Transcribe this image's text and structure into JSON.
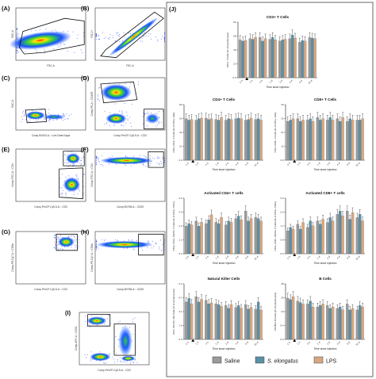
{
  "panel_labels": [
    "(A)",
    "(B)",
    "(C)",
    "(D)",
    "(E)",
    "(F)",
    "(G)",
    "(H)",
    "(I)",
    "(J)"
  ],
  "flow": [
    {
      "x": "FSC-A",
      "y": "SSC-A",
      "gate": "SSC-A"
    },
    {
      "x": "FSC-A",
      "y": "FSC-H",
      "gate": "FSC-H"
    },
    {
      "x": "Comp-BV510-A :: Live-Dead Aqua",
      "y": "SSC-A",
      "gate": ""
    },
    {
      "x": "Comp-PerCP-Cy5-5-A :: CD3",
      "y": "Comp-PE-A :: CD45R",
      "gate": ""
    },
    {
      "x": "Comp-PerCP-Cy5-5-A :: CD3",
      "y": "Comp-FITC-A :: CD4",
      "gate": ""
    },
    {
      "x": "Comp-BV786-A :: CD25",
      "y": "Comp-FITC-A :: CD4",
      "gate": ""
    },
    {
      "x": "Comp-PerCP-Cy5-5-A :: CD3",
      "y": "Comp-PE-Cy7-A :: CD8a",
      "gate": ""
    },
    {
      "x": "Comp-BV786-A :: CD25",
      "y": "Comp-PE-Cy7-A :: CD8a",
      "gate": ""
    },
    {
      "x": "Comp-PerCP-Cy5-5-A :: CD3",
      "y": "Comp-APC-A :: CD11",
      "gate": ""
    }
  ],
  "chart_data": [
    {
      "type": "bar",
      "title": "CD3+ T Cells",
      "ylabel": "CD3+ T-Cells (% of lymphocytes)",
      "xlabel": "Time since injection",
      "categories": [
        "-1 h",
        "1 h",
        "4 h",
        "1 d",
        "2 d",
        "4 d",
        "8 d",
        "16 d"
      ],
      "series": [
        {
          "name": "Saline",
          "values": [
            62,
            64,
            66,
            63,
            60,
            64,
            58,
            66
          ]
        },
        {
          "name": "S. elongatus",
          "values": [
            60,
            63,
            60,
            66,
            62,
            70,
            61,
            65
          ]
        },
        {
          "name": "LPS",
          "values": [
            61,
            66,
            64,
            62,
            63,
            65,
            60,
            64
          ]
        }
      ]
    },
    {
      "type": "bar",
      "title": "CD4+ T Cells",
      "ylabel": "CD3+ CD4+ T-Cells (% of CD3+ cells)",
      "xlabel": "Time since injection",
      "categories": [
        "-1 h",
        "1 h",
        "4 h",
        "1 d",
        "2 d",
        "4 d",
        "8 d",
        "16 d"
      ],
      "series": [
        {
          "name": "Saline",
          "values": [
            62,
            60,
            63,
            61,
            60,
            62,
            60,
            61
          ]
        },
        {
          "name": "S. elongatus",
          "values": [
            60,
            62,
            61,
            60,
            62,
            63,
            61,
            62
          ]
        },
        {
          "name": "LPS",
          "values": [
            61,
            63,
            62,
            64,
            61,
            62,
            63,
            60
          ]
        }
      ]
    },
    {
      "type": "bar",
      "title": "CD8+ T Cells",
      "ylabel": "CD3+ CD8+ T-Cells (% of CD3+ cells)",
      "xlabel": "Time since injection",
      "categories": [
        "-1 h",
        "1 h",
        "4 h",
        "1 d",
        "2 d",
        "4 d",
        "8 d",
        "16 d"
      ],
      "series": [
        {
          "name": "Saline",
          "values": [
            30,
            32,
            31,
            33,
            31,
            32,
            30,
            31
          ]
        },
        {
          "name": "S. elongatus",
          "values": [
            31,
            30,
            32,
            31,
            33,
            30,
            32,
            31
          ]
        },
        {
          "name": "LPS",
          "values": [
            32,
            31,
            30,
            32,
            31,
            33,
            31,
            32
          ]
        }
      ]
    },
    {
      "type": "bar",
      "title": "Activated CD4+ T cells",
      "ylabel": "CD3+ CD4+ CD25+ T-Cells (% of CD3+ CD4+)",
      "xlabel": "Time since injection",
      "categories": [
        "-1 h",
        "1 h",
        "4 h",
        "1 d",
        "2 d",
        "4 d",
        "8 d",
        "16 d"
      ],
      "series": [
        {
          "name": "Saline",
          "values": [
            2.2,
            2.6,
            2.4,
            2.5,
            2.3,
            2.8,
            3.4,
            2.9
          ]
        },
        {
          "name": "S. elongatus",
          "values": [
            2.4,
            2.2,
            2.7,
            2.4,
            2.6,
            3.0,
            2.6,
            2.8
          ]
        },
        {
          "name": "LPS",
          "values": [
            2.3,
            2.5,
            3.1,
            2.9,
            2.5,
            2.7,
            2.8,
            2.6
          ]
        }
      ]
    },
    {
      "type": "bar",
      "title": "Activated CD8+ T cells",
      "ylabel": "CD3+ CD8+ CD25+ T-Cells (% of CD3+ CD8+)",
      "xlabel": "Time since injection",
      "categories": [
        "-1 h",
        "1 h",
        "4 h",
        "1 d",
        "2 d",
        "4 d",
        "8 d",
        "16 d"
      ],
      "series": [
        {
          "name": "Saline",
          "values": [
            1.4,
            1.8,
            1.6,
            2.0,
            1.9,
            2.4,
            2.6,
            2.2
          ]
        },
        {
          "name": "S. elongatus",
          "values": [
            1.6,
            1.5,
            2.0,
            1.8,
            2.2,
            2.6,
            2.1,
            2.4
          ]
        },
        {
          "name": "LPS",
          "values": [
            1.5,
            1.9,
            1.7,
            2.1,
            2.0,
            2.3,
            2.5,
            2.0
          ]
        }
      ]
    },
    {
      "type": "bar",
      "title": "Natural Killer Cells",
      "ylabel": "CD3- CD161+ NK Cells (% of lymphocytes)",
      "xlabel": "Time since injection",
      "categories": [
        "-1 h",
        "1 h",
        "4 h",
        "1 d",
        "2 d",
        "4 d",
        "8 d",
        "16 d"
      ],
      "series": [
        {
          "name": "Saline",
          "values": [
            4.2,
            4.8,
            4.4,
            4.0,
            3.8,
            3.6,
            3.9,
            3.4
          ]
        },
        {
          "name": "S. elongatus",
          "values": [
            4.6,
            4.2,
            4.0,
            3.9,
            3.5,
            3.8,
            3.4,
            4.2
          ]
        },
        {
          "name": "LPS",
          "values": [
            4.0,
            4.5,
            4.1,
            3.7,
            3.9,
            3.5,
            3.6,
            3.3
          ]
        }
      ]
    },
    {
      "type": "bar",
      "title": "B Cells",
      "ylabel": "CD45R+ B-Cells (% of lymphocytes)",
      "xlabel": "Time since injection",
      "categories": [
        "-1 h",
        "1 h",
        "4 h",
        "1 d",
        "2 d",
        "4 d",
        "8 d",
        "16 d"
      ],
      "series": [
        {
          "name": "Saline",
          "values": [
            28,
            26,
            24,
            22,
            23,
            21,
            24,
            20
          ]
        },
        {
          "name": "S. elongatus",
          "values": [
            27,
            25,
            26,
            23,
            21,
            22,
            20,
            23
          ]
        },
        {
          "name": "LPS",
          "values": [
            29,
            24,
            22,
            24,
            22,
            20,
            21,
            22
          ]
        }
      ]
    }
  ],
  "legend": [
    {
      "label": "Saline",
      "color": "#9a9a9a",
      "italic": false
    },
    {
      "label": "S. elongatus",
      "color": "#5b8fa8",
      "italic": true
    },
    {
      "label": "LPS",
      "color": "#d9a77e",
      "italic": false
    }
  ]
}
